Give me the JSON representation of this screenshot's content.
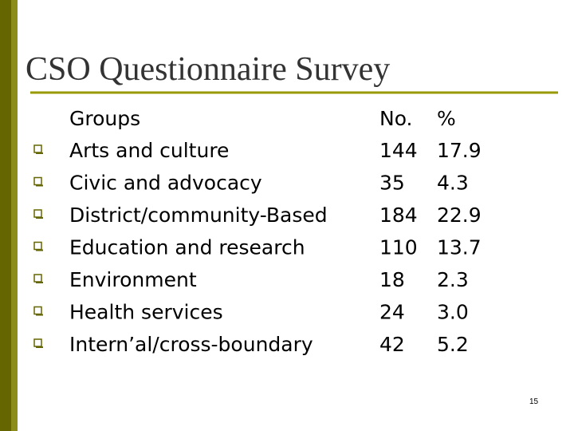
{
  "title": "CSO Questionnaire Survey",
  "table": {
    "header": [
      "Groups",
      "No.",
      "%"
    ],
    "rows": [
      [
        "Arts and culture",
        144,
        17.9
      ],
      [
        "Civic and advocacy",
        35,
        4.3
      ],
      [
        "District/community-Based",
        184,
        22.9
      ],
      [
        "Education and research",
        110,
        13.7
      ],
      [
        "Environment",
        18,
        2.3
      ],
      [
        "Health services",
        24,
        "3.0"
      ],
      [
        "Intern’al/cross-boundary",
        42,
        5.2
      ]
    ]
  },
  "page_number": "15"
}
